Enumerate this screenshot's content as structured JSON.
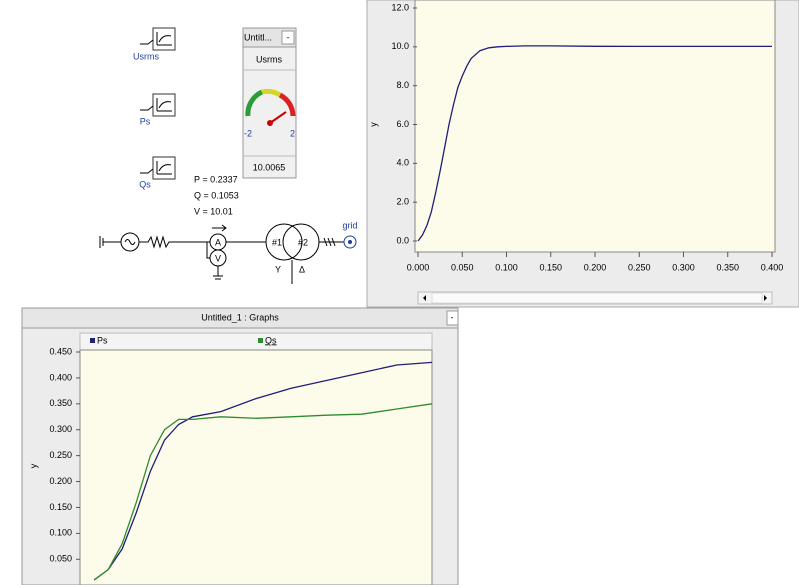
{
  "schematic": {
    "plots": [
      {
        "label": "Usrms"
      },
      {
        "label": "Ps"
      },
      {
        "label": "Qs"
      }
    ],
    "readout": {
      "p": "P = 0.2337",
      "q": "Q = 0.1053",
      "v": "V = 10.01"
    },
    "symbols": {
      "ammeter": "A",
      "voltmeter": "V",
      "t1": "#1",
      "t2": "#2",
      "wye": "Y",
      "delta": "Δ",
      "bus": "grid"
    }
  },
  "meter": {
    "title": "Untitl...",
    "button": "-",
    "signal": "Usrms",
    "min": "-2",
    "max": "2",
    "reading": "10.0065"
  },
  "chart_data": [
    {
      "type": "line",
      "ylabel": "y",
      "x": [
        0,
        0.005,
        0.01,
        0.015,
        0.02,
        0.025,
        0.03,
        0.035,
        0.04,
        0.045,
        0.05,
        0.055,
        0.06,
        0.07,
        0.08,
        0.09,
        0.1,
        0.12,
        0.15,
        0.2,
        0.25,
        0.3,
        0.35,
        0.4
      ],
      "values": [
        0,
        0.3,
        0.8,
        1.5,
        2.5,
        3.6,
        4.8,
        6.0,
        7.0,
        7.9,
        8.5,
        9.0,
        9.4,
        9.8,
        9.95,
        10.0,
        10.02,
        10.05,
        10.05,
        10.03,
        10.02,
        10.02,
        10.02,
        10.02
      ],
      "color": "#1f1f7a",
      "xlim": [
        0,
        0.4
      ],
      "ylim": [
        0,
        12
      ],
      "xticks": [
        {
          "value": 0,
          "label": "0.000"
        },
        {
          "value": 0.05,
          "label": "0.050"
        },
        {
          "value": 0.1,
          "label": "0.100"
        },
        {
          "value": 0.15,
          "label": "0.150"
        },
        {
          "value": 0.2,
          "label": "0.200"
        },
        {
          "value": 0.25,
          "label": "0.250"
        },
        {
          "value": 0.3,
          "label": "0.300"
        },
        {
          "value": 0.35,
          "label": "0.350"
        },
        {
          "value": 0.4,
          "label": "0.400"
        }
      ],
      "yticks": [
        {
          "value": 0,
          "label": "0.0"
        },
        {
          "value": 2,
          "label": "2.0"
        },
        {
          "value": 4,
          "label": "4.0"
        },
        {
          "value": 6,
          "label": "6.0"
        },
        {
          "value": 8,
          "label": "8.0"
        },
        {
          "value": 10,
          "label": "10.0"
        },
        {
          "value": 12,
          "label": "12.0"
        }
      ]
    },
    {
      "type": "line",
      "title": "Untitled_1 : Graphs",
      "button": "-",
      "ylabel": "y",
      "x": [
        0.04,
        0.08,
        0.12,
        0.16,
        0.2,
        0.24,
        0.28,
        0.32,
        0.4,
        0.5,
        0.6,
        0.7,
        0.8,
        0.9,
        1.0
      ],
      "series": [
        {
          "name": "Ps",
          "color": "#1f1f7a",
          "values": [
            0.01,
            0.03,
            0.07,
            0.14,
            0.22,
            0.28,
            0.31,
            0.325,
            0.335,
            0.36,
            0.38,
            0.395,
            0.41,
            0.425,
            0.43
          ]
        },
        {
          "name": "Qs",
          "color": "#2e8b2e",
          "values": [
            0.01,
            0.03,
            0.08,
            0.16,
            0.25,
            0.3,
            0.32,
            0.32,
            0.325,
            0.322,
            0.325,
            0.328,
            0.33,
            0.34,
            0.35
          ]
        }
      ],
      "xlim": [
        0,
        1
      ],
      "ylim": [
        0.01,
        0.45
      ],
      "yticks": [
        {
          "value": 0.05,
          "label": "0.050"
        },
        {
          "value": 0.1,
          "label": "0.100"
        },
        {
          "value": 0.15,
          "label": "0.150"
        },
        {
          "value": 0.2,
          "label": "0.200"
        },
        {
          "value": 0.25,
          "label": "0.250"
        },
        {
          "value": 0.3,
          "label": "0.300"
        },
        {
          "value": 0.35,
          "label": "0.350"
        },
        {
          "value": 0.4,
          "label": "0.400"
        },
        {
          "value": 0.45,
          "label": "0.450"
        }
      ]
    }
  ]
}
